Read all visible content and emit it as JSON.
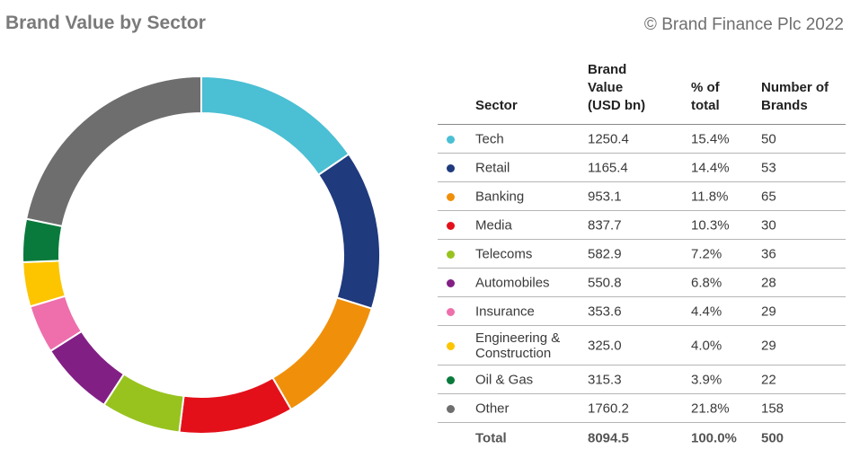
{
  "title": "Brand Value by Sector",
  "copyright": "© Brand Finance Plc 2022",
  "table": {
    "headers": {
      "sector": "Sector",
      "value": [
        "Brand",
        "Value",
        "(USD bn)"
      ],
      "pct": [
        "% of",
        "total"
      ],
      "num": [
        "Number of",
        "Brands"
      ]
    },
    "rows": [
      {
        "sector": "Tech",
        "value": "1250.4",
        "pct": "15.4%",
        "num": "50",
        "color": "#4bbfd4"
      },
      {
        "sector": "Retail",
        "value": "1165.4",
        "pct": "14.4%",
        "num": "53",
        "color": "#1f3a7d"
      },
      {
        "sector": "Banking",
        "value": "953.1",
        "pct": "11.8%",
        "num": "65",
        "color": "#f0900a"
      },
      {
        "sector": "Media",
        "value": "837.7",
        "pct": "10.3%",
        "num": "30",
        "color": "#e3101a"
      },
      {
        "sector": "Telecoms",
        "value": "582.9",
        "pct": "7.2%",
        "num": "36",
        "color": "#98c31f"
      },
      {
        "sector": "Automobiles",
        "value": "550.8",
        "pct": "6.8%",
        "num": "28",
        "color": "#821f84"
      },
      {
        "sector": "Insurance",
        "value": "353.6",
        "pct": "4.4%",
        "num": "29",
        "color": "#ee6fac"
      },
      {
        "sector": "Engineering & Construction",
        "value": "325.0",
        "pct": "4.0%",
        "num": "29",
        "color": "#fcc500"
      },
      {
        "sector": "Oil & Gas",
        "value": "315.3",
        "pct": "3.9%",
        "num": "22",
        "color": "#0a7a3c"
      },
      {
        "sector": "Other",
        "value": "1760.2",
        "pct": "21.8%",
        "num": "158",
        "color": "#6e6e6e"
      }
    ],
    "total": {
      "sector": "Total",
      "value": "8094.5",
      "pct": "100.0%",
      "num": "500"
    }
  },
  "chart_data": {
    "type": "pie",
    "variant": "donut",
    "title": "Brand Value by Sector",
    "categories": [
      "Tech",
      "Retail",
      "Banking",
      "Media",
      "Telecoms",
      "Automobiles",
      "Insurance",
      "Engineering & Construction",
      "Oil & Gas",
      "Other"
    ],
    "values": [
      1250.4,
      1165.4,
      953.1,
      837.7,
      582.9,
      550.8,
      353.6,
      325.0,
      315.3,
      1760.2
    ],
    "units": "USD bn",
    "colors": [
      "#4bbfd4",
      "#1f3a7d",
      "#f0900a",
      "#e3101a",
      "#98c31f",
      "#821f84",
      "#ee6fac",
      "#fcc500",
      "#0a7a3c",
      "#6e6e6e"
    ]
  }
}
